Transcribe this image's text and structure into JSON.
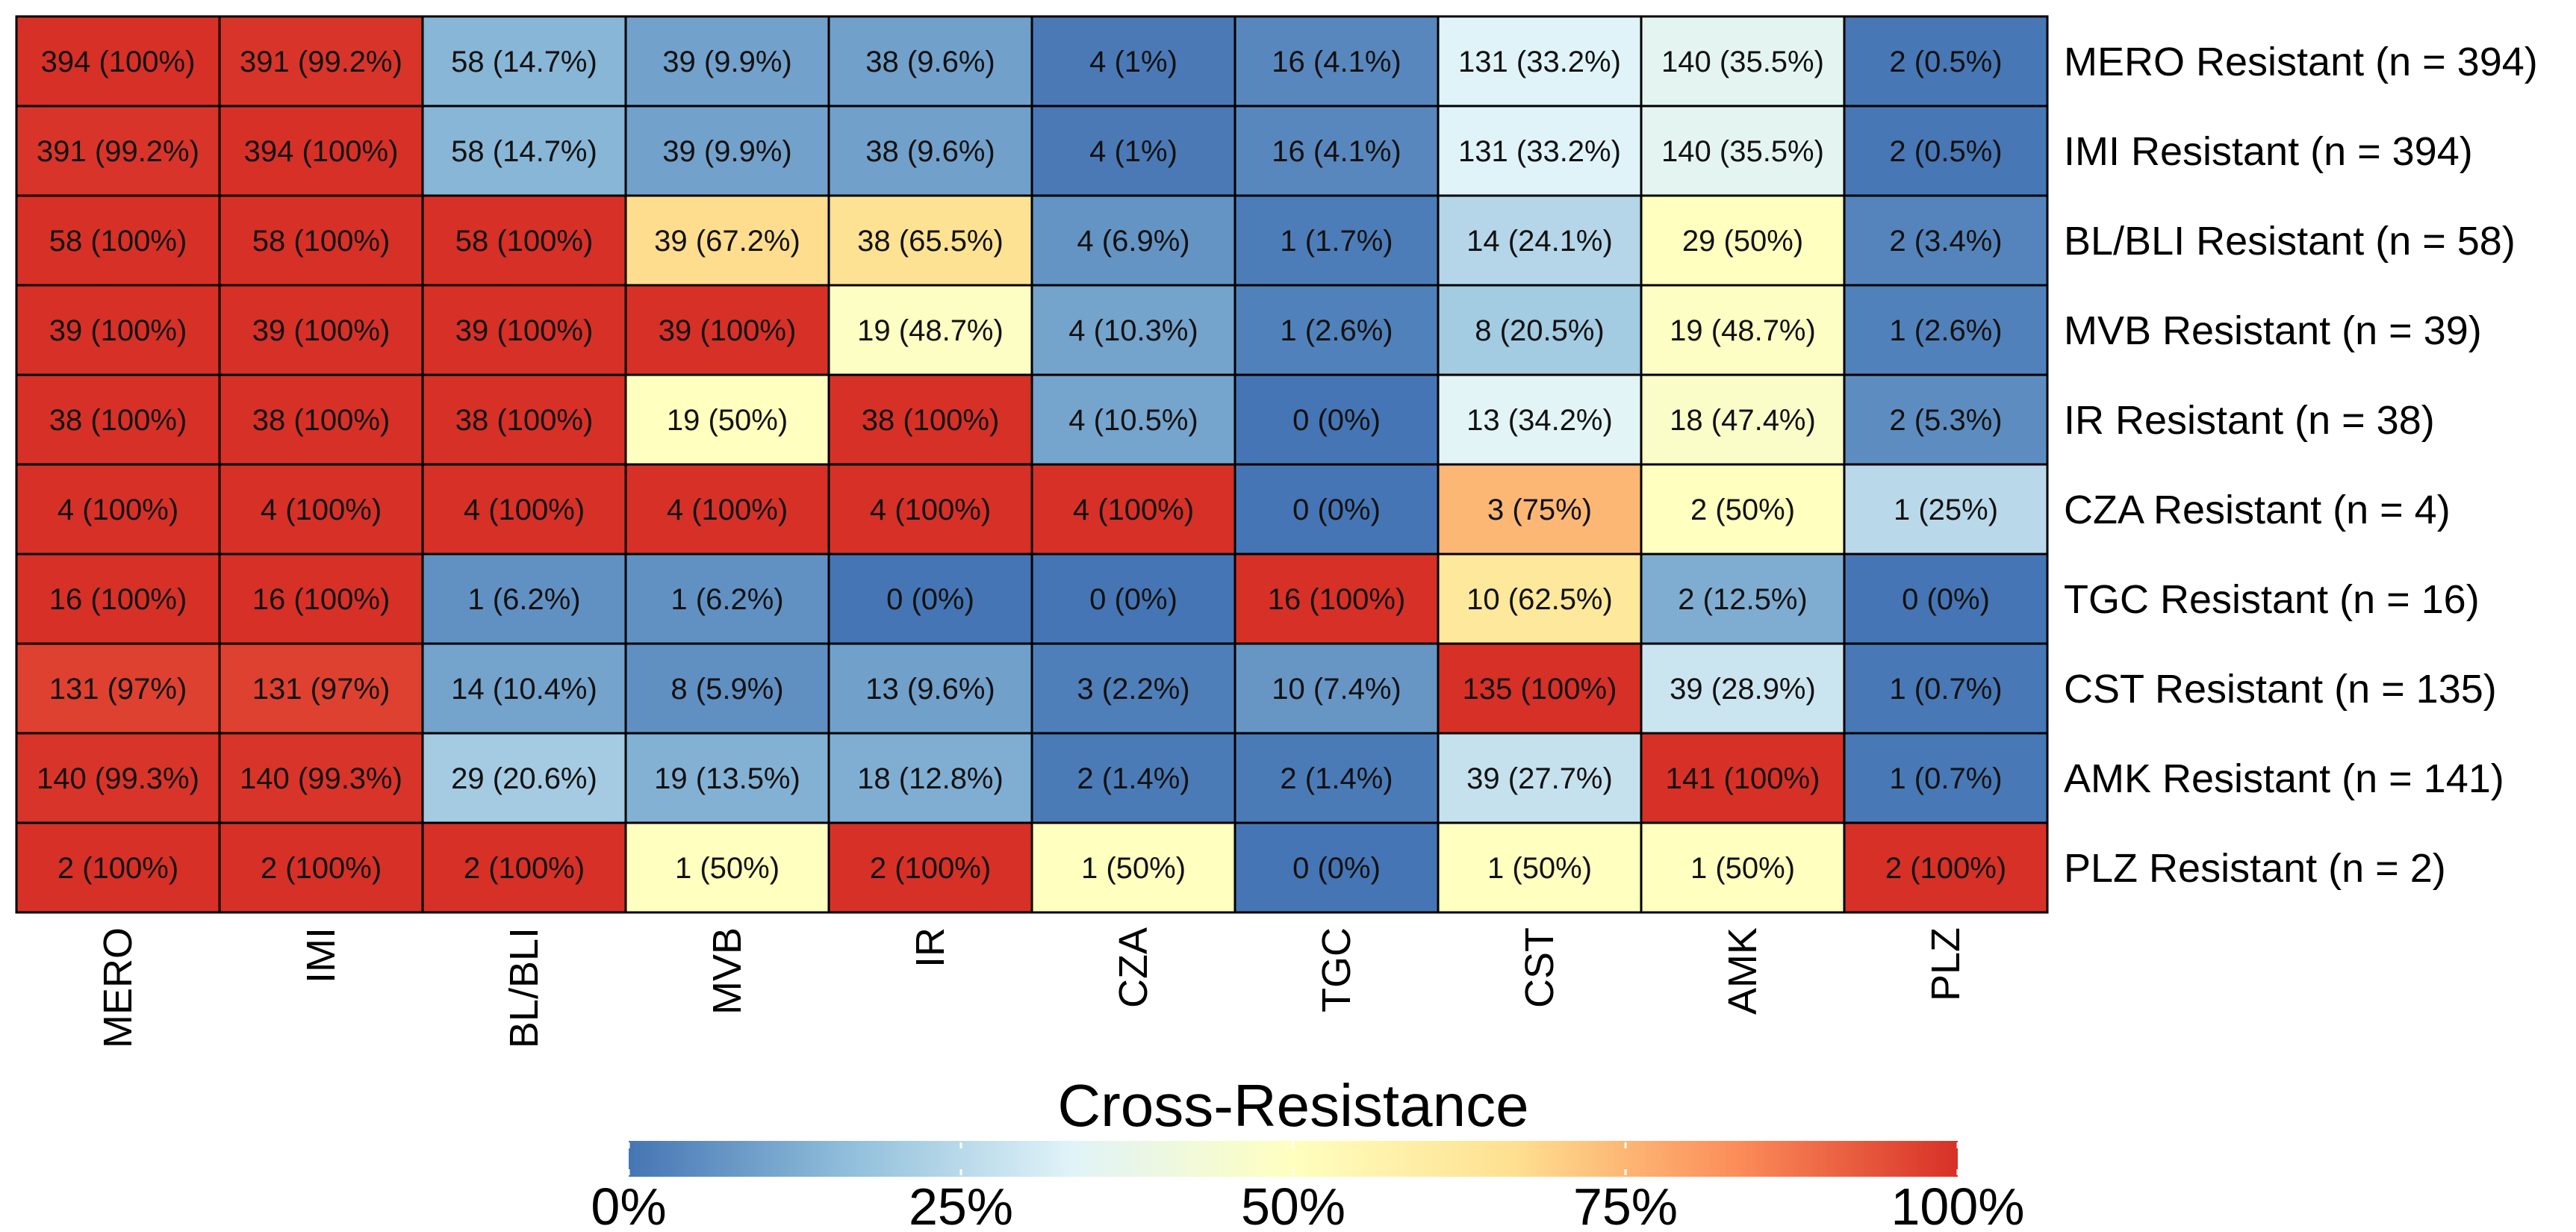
{
  "chart_data": {
    "type": "heatmap",
    "columns": [
      "MERO",
      "IMI",
      "BL/BLI",
      "MVB",
      "IR",
      "CZA",
      "TGC",
      "CST",
      "AMK",
      "PLZ"
    ],
    "rows": [
      {
        "label": "MERO Resistant (n = 394)",
        "counts": [
          394,
          391,
          58,
          39,
          38,
          4,
          16,
          131,
          140,
          2
        ],
        "pct": [
          100,
          99.2,
          14.7,
          9.9,
          9.6,
          1,
          4.1,
          33.2,
          35.5,
          0.5
        ]
      },
      {
        "label": "IMI Resistant (n = 394)",
        "counts": [
          391,
          394,
          58,
          39,
          38,
          4,
          16,
          131,
          140,
          2
        ],
        "pct": [
          99.2,
          100,
          14.7,
          9.9,
          9.6,
          1,
          4.1,
          33.2,
          35.5,
          0.5
        ]
      },
      {
        "label": "BL/BLI Resistant (n = 58)",
        "counts": [
          58,
          58,
          58,
          39,
          38,
          4,
          1,
          14,
          29,
          2
        ],
        "pct": [
          100,
          100,
          100,
          67.2,
          65.5,
          6.9,
          1.7,
          24.1,
          50,
          3.4
        ]
      },
      {
        "label": "MVB Resistant (n = 39)",
        "counts": [
          39,
          39,
          39,
          39,
          19,
          4,
          1,
          8,
          19,
          1
        ],
        "pct": [
          100,
          100,
          100,
          100,
          48.7,
          10.3,
          2.6,
          20.5,
          48.7,
          2.6
        ]
      },
      {
        "label": "IR Resistant (n = 38)",
        "counts": [
          38,
          38,
          38,
          19,
          38,
          4,
          0,
          13,
          18,
          2
        ],
        "pct": [
          100,
          100,
          100,
          50,
          100,
          10.5,
          0,
          34.2,
          47.4,
          5.3
        ]
      },
      {
        "label": "CZA Resistant (n = 4)",
        "counts": [
          4,
          4,
          4,
          4,
          4,
          4,
          0,
          3,
          2,
          1
        ],
        "pct": [
          100,
          100,
          100,
          100,
          100,
          100,
          0,
          75,
          50,
          25
        ]
      },
      {
        "label": "TGC Resistant (n = 16)",
        "counts": [
          16,
          16,
          1,
          1,
          0,
          0,
          16,
          10,
          2,
          0
        ],
        "pct": [
          100,
          100,
          6.2,
          6.2,
          0,
          0,
          100,
          62.5,
          12.5,
          0
        ]
      },
      {
        "label": "CST Resistant (n = 135)",
        "counts": [
          131,
          131,
          14,
          8,
          13,
          3,
          10,
          135,
          39,
          1
        ],
        "pct": [
          97,
          97,
          10.4,
          5.9,
          9.6,
          2.2,
          7.4,
          100,
          28.9,
          0.7
        ]
      },
      {
        "label": "AMK Resistant (n = 141)",
        "counts": [
          140,
          140,
          29,
          19,
          18,
          2,
          2,
          39,
          141,
          1
        ],
        "pct": [
          99.3,
          99.3,
          20.6,
          13.5,
          12.8,
          1.4,
          1.4,
          27.7,
          100,
          0.7
        ]
      },
      {
        "label": "PLZ Resistant (n = 2)",
        "counts": [
          2,
          2,
          2,
          1,
          2,
          1,
          0,
          1,
          1,
          2
        ],
        "pct": [
          100,
          100,
          100,
          50,
          100,
          50,
          0,
          50,
          50,
          100
        ]
      }
    ],
    "legend": {
      "title": "Cross-Resistance",
      "ticks": [
        "0%",
        "25%",
        "50%",
        "75%",
        "100%"
      ],
      "tick_values": [
        0,
        25,
        50,
        75,
        100
      ],
      "colors": [
        "#4575b4",
        "#91bfdb",
        "#e0f3f8",
        "#ffffbf",
        "#fee090",
        "#fc8d59",
        "#d73027"
      ],
      "placement": "bottom"
    },
    "value_range": [
      0,
      100
    ]
  }
}
